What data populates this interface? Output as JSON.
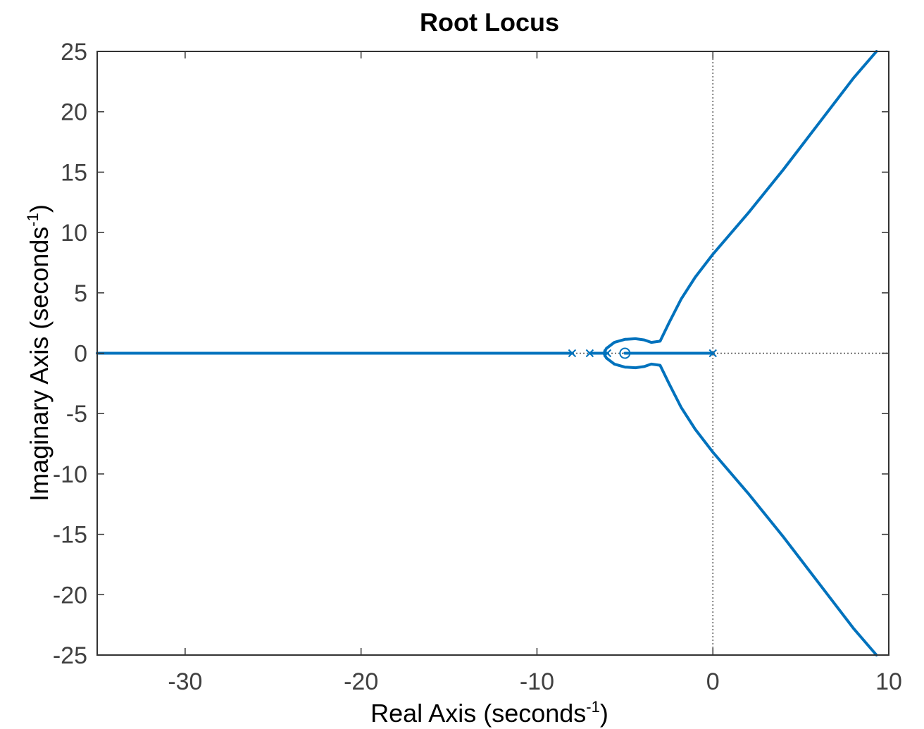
{
  "chart_data": {
    "type": "line",
    "title": "Root Locus",
    "xlabel": {
      "text": "Real Axis (seconds",
      "sup": "-1",
      "close": ")"
    },
    "ylabel": {
      "text": "Imaginary Axis (seconds",
      "sup": "-1",
      "close": ")"
    },
    "xlim": [
      -35,
      10
    ],
    "ylim": [
      -25,
      25
    ],
    "xticks": [
      -30,
      -20,
      -10,
      0,
      10
    ],
    "xtick_labels": [
      "-30",
      "-20",
      "-10",
      "0",
      "10"
    ],
    "yticks": [
      -25,
      -20,
      -15,
      -10,
      -5,
      0,
      5,
      10,
      15,
      20,
      25
    ],
    "ytick_labels": [
      "-25",
      "-20",
      "-15",
      "-10",
      "-5",
      "0",
      "5",
      "10",
      "15",
      "20",
      "25"
    ],
    "grid": false,
    "colors": {
      "locus": "#0072BD",
      "axes": "#333333",
      "zero_lines": "#555555"
    },
    "poles": [
      [
        -8,
        0
      ],
      [
        -7,
        0
      ],
      [
        -6,
        0
      ],
      [
        0,
        0
      ]
    ],
    "zeros": [
      [
        -5,
        0
      ]
    ],
    "series": [
      {
        "values": [
          [
            -35,
            0
          ],
          [
            -8,
            0
          ]
        ]
      },
      {
        "values": [
          [
            -7,
            0
          ],
          [
            -6,
            0
          ]
        ]
      },
      {
        "values": [
          [
            -5,
            0
          ],
          [
            0,
            0
          ]
        ]
      },
      {
        "values": [
          [
            -6.2,
            0
          ],
          [
            -6.05,
            0.4
          ],
          [
            -5.6,
            0.9
          ],
          [
            -5.0,
            1.15
          ],
          [
            -4.4,
            1.2
          ],
          [
            -3.9,
            1.1
          ],
          [
            -3.5,
            0.9
          ],
          [
            -3.0,
            1.0
          ],
          [
            -2.5,
            2.5
          ],
          [
            -1.8,
            4.5
          ],
          [
            -1.0,
            6.3
          ],
          [
            0,
            8.2
          ],
          [
            2,
            11.6
          ],
          [
            4,
            15.2
          ],
          [
            6,
            19.0
          ],
          [
            8,
            22.8
          ],
          [
            9.3,
            25
          ]
        ]
      },
      {
        "values": [
          [
            -6.2,
            0
          ],
          [
            -6.05,
            -0.4
          ],
          [
            -5.6,
            -0.9
          ],
          [
            -5.0,
            -1.15
          ],
          [
            -4.4,
            -1.2
          ],
          [
            -3.9,
            -1.1
          ],
          [
            -3.5,
            -0.9
          ],
          [
            -3.0,
            -1.0
          ],
          [
            -2.5,
            -2.5
          ],
          [
            -1.8,
            -4.5
          ],
          [
            -1.0,
            -6.3
          ],
          [
            0,
            -8.2
          ],
          [
            2,
            -11.6
          ],
          [
            4,
            -15.2
          ],
          [
            6,
            -19.0
          ],
          [
            8,
            -22.8
          ],
          [
            9.3,
            -25
          ]
        ]
      }
    ]
  }
}
